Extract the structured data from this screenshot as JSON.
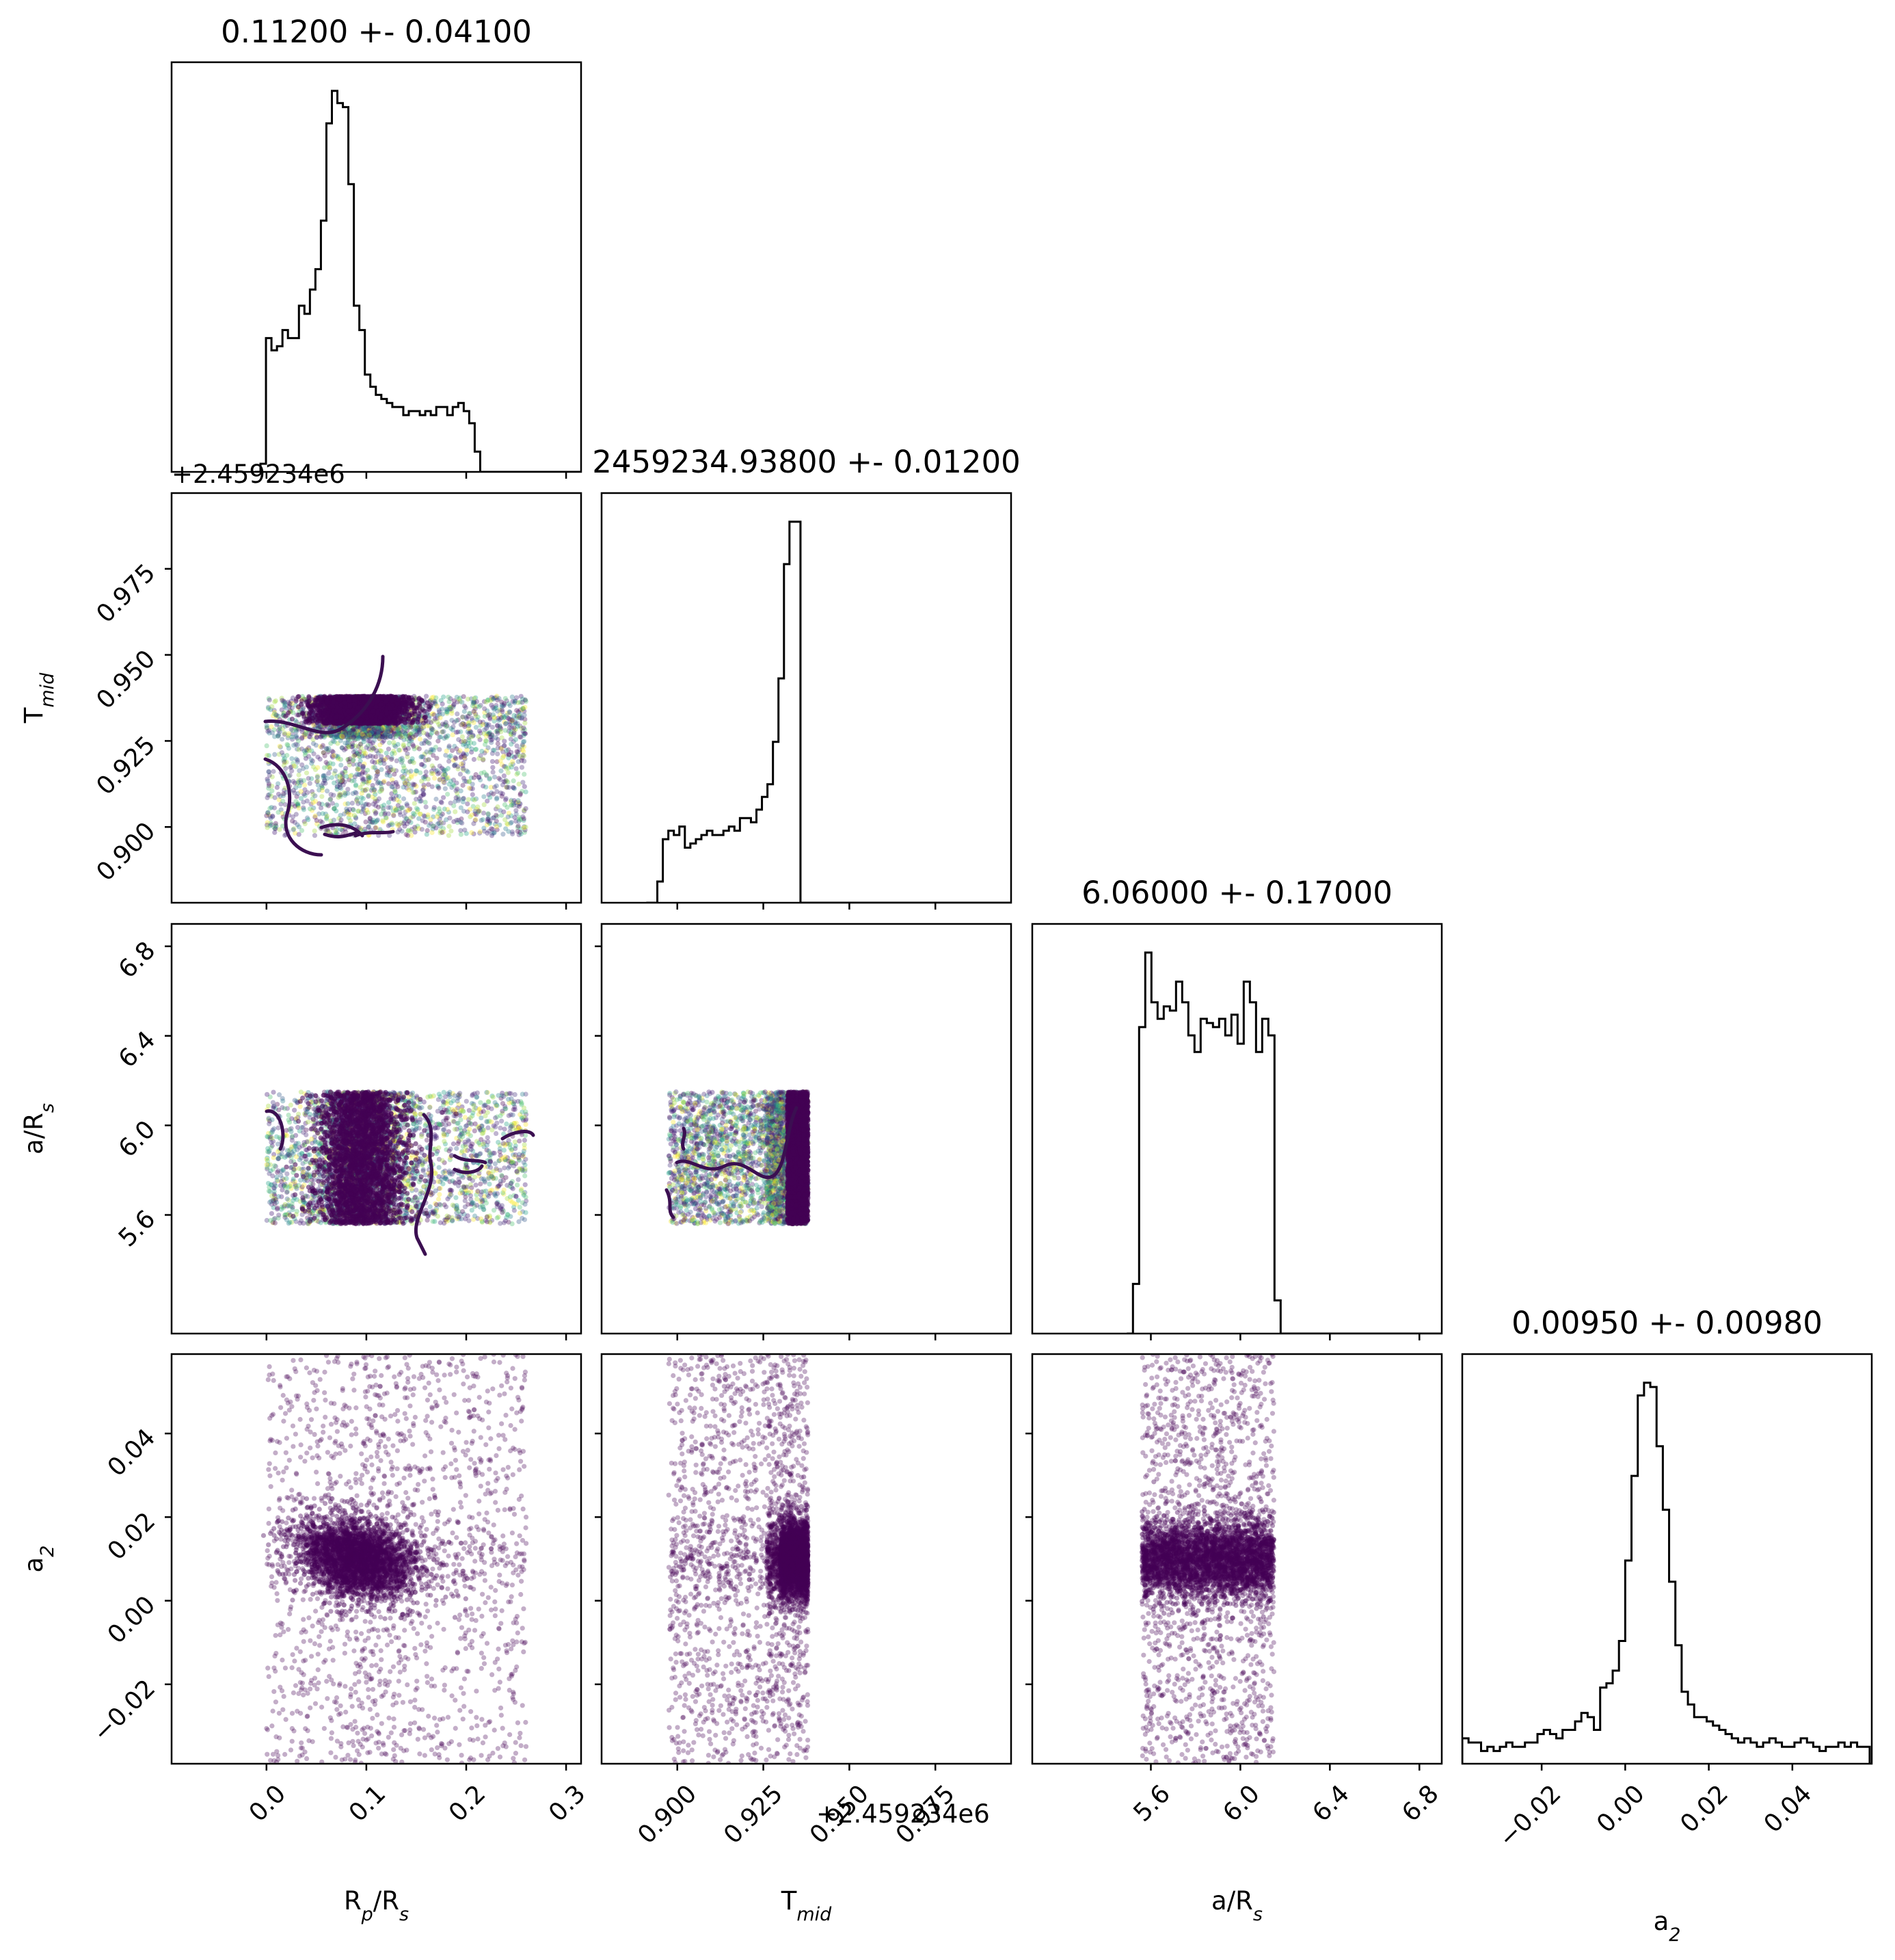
{
  "chart_data": {
    "type": "corner",
    "parameters": [
      {
        "key": "rprs",
        "label_main": "R",
        "label_sub": "p",
        "label_tail_main": "/R",
        "label_tail_sub": "s",
        "title": "0.11200 +- 0.04100",
        "range": [
          -0.095,
          0.315
        ],
        "ticks": [
          "0.0",
          "0.1",
          "0.2",
          "0.3"
        ],
        "tick_values": [
          0.0,
          0.1,
          0.2,
          0.3
        ]
      },
      {
        "key": "tmid",
        "label_main": "T",
        "label_sub": "mid",
        "label_tail_main": "",
        "label_tail_sub": "",
        "title": "2459234.93800 +- 0.01200",
        "range": [
          0.878,
          0.997
        ],
        "ticks": [
          "0.900",
          "0.925",
          "0.950",
          "0.975"
        ],
        "tick_values": [
          0.9,
          0.925,
          0.95,
          0.975
        ],
        "offset_text": "+2.459234e6"
      },
      {
        "key": "ars",
        "label_main": "a/R",
        "label_sub": "s",
        "label_tail_main": "",
        "label_tail_sub": "",
        "title": "6.06000 +- 0.17000",
        "range": [
          5.07,
          6.9
        ],
        "ticks": [
          "5.6",
          "6.0",
          "6.4",
          "6.8"
        ],
        "tick_values": [
          5.6,
          6.0,
          6.4,
          6.8
        ]
      },
      {
        "key": "a2",
        "label_main": "a",
        "label_sub": "2",
        "label_tail_main": "",
        "label_tail_sub": "",
        "title": "0.00950 +- 0.00980",
        "range": [
          -0.039,
          0.059
        ],
        "ticks": [
          "−0.02",
          "0.00",
          "0.02",
          "0.04"
        ],
        "tick_values": [
          -0.02,
          0.0,
          0.02,
          0.04
        ]
      }
    ],
    "histograms": {
      "rprs": {
        "start": -0.006,
        "step": 0.0055,
        "counts": [
          0.02,
          0.33,
          0.3,
          0.31,
          0.35,
          0.33,
          0.33,
          0.41,
          0.39,
          0.45,
          0.5,
          0.62,
          0.86,
          0.94,
          0.91,
          0.9,
          0.71,
          0.41,
          0.35,
          0.24,
          0.21,
          0.19,
          0.18,
          0.17,
          0.16,
          0.16,
          0.14,
          0.15,
          0.15,
          0.14,
          0.15,
          0.14,
          0.16,
          0.16,
          0.14,
          0.16,
          0.17,
          0.15,
          0.12,
          0.05,
          0.0
        ]
      },
      "tmid": {
        "start": 0.8926,
        "step": 0.0016,
        "counts": [
          0.0,
          0.05,
          0.15,
          0.17,
          0.16,
          0.18,
          0.13,
          0.14,
          0.15,
          0.16,
          0.17,
          0.16,
          0.16,
          0.17,
          0.18,
          0.17,
          0.2,
          0.2,
          0.19,
          0.22,
          0.25,
          0.28,
          0.38,
          0.53,
          0.8,
          0.9,
          0.9,
          0.0
        ]
      },
      "ars": {
        "start": 5.52,
        "step": 0.0275,
        "counts": [
          0.12,
          0.74,
          0.92,
          0.8,
          0.76,
          0.79,
          0.78,
          0.85,
          0.8,
          0.72,
          0.68,
          0.76,
          0.75,
          0.74,
          0.76,
          0.72,
          0.77,
          0.7,
          0.85,
          0.8,
          0.68,
          0.76,
          0.72,
          0.08,
          0.0
        ]
      },
      "a2": {
        "start": -0.039,
        "step": 0.0015,
        "counts": [
          0.06,
          0.05,
          0.05,
          0.03,
          0.04,
          0.03,
          0.04,
          0.05,
          0.04,
          0.04,
          0.05,
          0.05,
          0.07,
          0.08,
          0.07,
          0.06,
          0.08,
          0.08,
          0.1,
          0.12,
          0.11,
          0.08,
          0.18,
          0.19,
          0.22,
          0.29,
          0.48,
          0.68,
          0.87,
          0.9,
          0.89,
          0.75,
          0.6,
          0.43,
          0.28,
          0.17,
          0.14,
          0.11,
          0.11,
          0.1,
          0.09,
          0.08,
          0.07,
          0.06,
          0.05,
          0.06,
          0.05,
          0.04,
          0.05,
          0.06,
          0.05,
          0.04,
          0.04,
          0.05,
          0.06,
          0.05,
          0.04,
          0.03,
          0.04,
          0.04,
          0.05,
          0.04,
          0.05,
          0.04,
          0.04
        ]
      }
    },
    "grid": false,
    "legend": "none"
  }
}
